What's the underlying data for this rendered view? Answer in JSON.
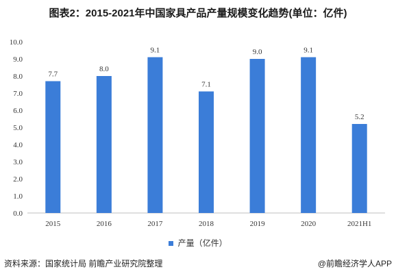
{
  "page": {
    "title": "图表2：2015-2021年中国家具产品产量规模变化趋势(单位：亿件)",
    "source": "资料来源：国家统计局 前瞻产业研究院整理",
    "brand": "@前瞻经济学人APP"
  },
  "chart_data": {
    "type": "bar",
    "title": "图表2：2015-2021年中国家具产品产量规模变化趋势(单位：亿件)",
    "categories": [
      "2015",
      "2016",
      "2017",
      "2018",
      "2019",
      "2020",
      "2021H1"
    ],
    "series": [
      {
        "name": "产量（亿件）",
        "values": [
          7.7,
          8.0,
          9.1,
          7.1,
          9.0,
          9.1,
          5.2
        ],
        "color": "#3b7dd8"
      }
    ],
    "data_labels": [
      "7.7",
      "8.0",
      "9.1",
      "7.1",
      "9.0",
      "9.1",
      "5.2"
    ],
    "yticks": [
      "0.0",
      "1.0",
      "2.0",
      "3.0",
      "4.0",
      "5.0",
      "6.0",
      "7.0",
      "8.0",
      "9.0",
      "10.0"
    ],
    "ylim": [
      0,
      10
    ],
    "grid": false,
    "legend_position": "bottom"
  }
}
